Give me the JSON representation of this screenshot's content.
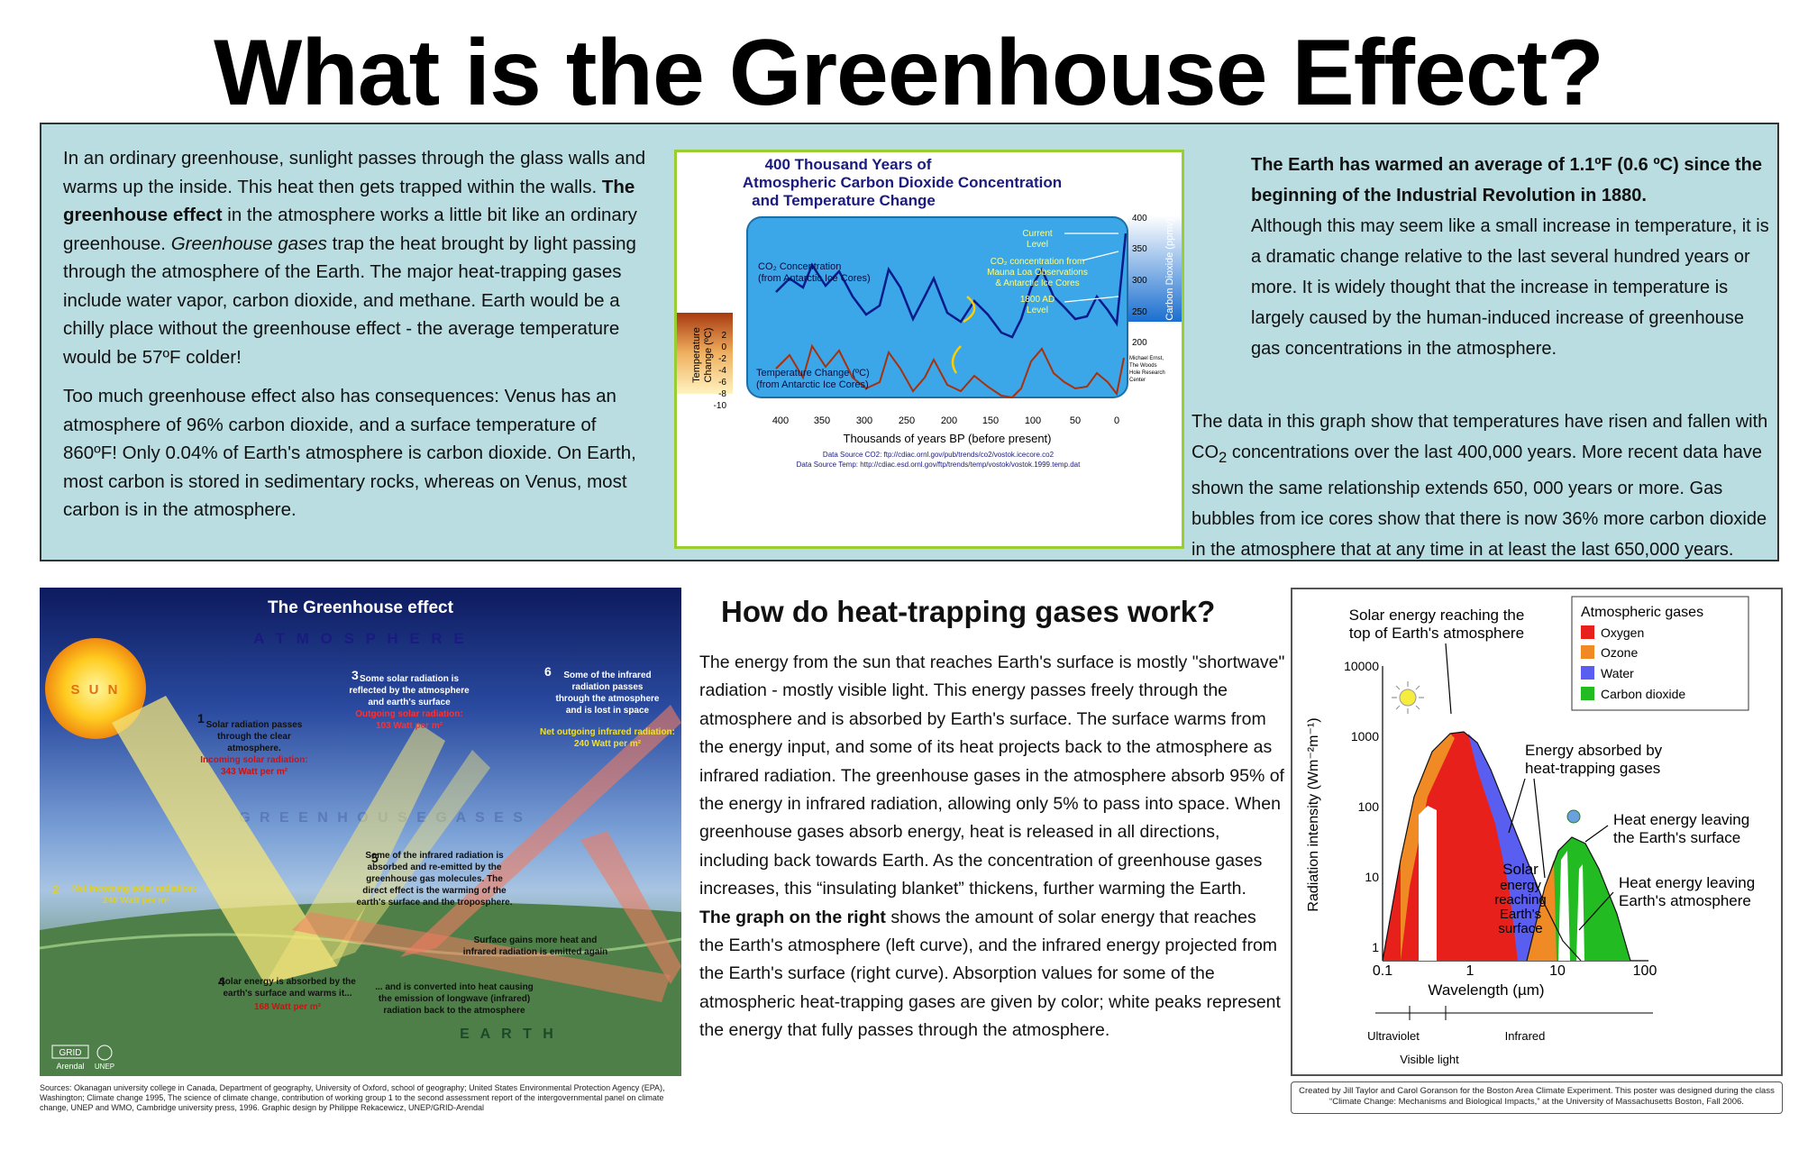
{
  "title": "What is the Greenhouse Effect?",
  "intro": {
    "p1_a": "In an ordinary greenhouse, sunlight passes through the glass walls and warms up the inside.  This heat then gets trapped within the walls. ",
    "p1_b": "The greenhouse effect",
    "p1_c": " in the atmosphere works a little bit like an ordinary greenhouse.  ",
    "p1_d": "Greenhouse gases",
    "p1_e": " trap the heat brought by light passing through the atmosphere of the Earth.  The major heat-trapping gases include water vapor, carbon dioxide, and methane.  Earth would be a chilly place without the greenhouse effect - the average temperature would be 57ºF colder!",
    "p2": "Too much greenhouse effect also has consequences:  Venus has an atmosphere of 96% carbon dioxide, and a surface temperature of 860ºF!  Only 0.04% of Earth's atmosphere is carbon dioxide.  On Earth, most carbon is stored in sedimentary rocks, whereas on Venus, most carbon is in the atmosphere."
  },
  "co2_chart": {
    "title_1": "400 Thousand Years of",
    "title_2": "Atmospheric Carbon Dioxide Concentration",
    "title_3": "and Temperature Change",
    "co2_label_1": "CO₂ Concentration",
    "co2_label_2": "(from Antarctic Ice Cores)",
    "current_1": "Current",
    "current_2": "Level",
    "mauna_1": "CO₂ concentration from",
    "mauna_2": "Mauna Loa Observations",
    "mauna_3": "& Antarctic Ice Cores",
    "ad_1": "1800 AD",
    "ad_2": "Level",
    "temp_label_1": "Temperature Change (ºC)",
    "temp_label_2": "(from Antarctic Ice Cores)",
    "left_axis_1": "Temperature",
    "left_axis_2": "Change (ºC)",
    "right_axis": "Carbon Dioxide (ppmv)",
    "xlabel": "Thousands of years BP (before present)",
    "credit_1": "Michael Ernst,",
    "credit_2": "The Woods",
    "credit_3": "Hole Research",
    "credit_4": "Center",
    "source_1": "Data Source CO2: ftp://cdiac.ornl.gov/pub/trends/co2/vostok.icecore.co2",
    "source_2": "Data Source Temp: http://cdiac.esd.ornl.gov/ftp/trends/temp/vostok/vostok.1999.temp.dat",
    "x_ticks": [
      "400",
      "350",
      "300",
      "250",
      "200",
      "150",
      "100",
      "50",
      "0"
    ],
    "co2_ticks": [
      "400",
      "350",
      "300",
      "250",
      "200"
    ],
    "temp_ticks": [
      "2",
      "0",
      "-2",
      "-4",
      "-6",
      "-8",
      "-10"
    ]
  },
  "warming": {
    "bold": "The Earth has warmed an average of 1.1ºF (0.6 ºC) since the beginning of the Industrial Revolution in 1880.",
    "text": "Although this may seem like a small increase in temperature, it is a dramatic change relative to the last several hundred years or more.  It is widely thought that the increase in temperature is largely caused by the human-induced increase of greenhouse gas concentrations in the atmosphere."
  },
  "data_note": {
    "a": "The data in this graph show that temperatures have risen and fallen with CO",
    "sub": "2",
    "b": " concentrations over the last 400,000 years.  More recent data have shown the same relationship extends 650, 000 years or more.  Gas bubbles from ice cores show that there is now 36% more carbon dioxide in the atmosphere that at any time in at least the last 650,000 years."
  },
  "gh_figure": {
    "title": "The Greenhouse effect",
    "atmosphere": "A T M O S P H E R E",
    "greenhouse_gases": "G R E E N H O U S E   G A S E S",
    "earth": "E A R T H",
    "sun": "S U N",
    "s1_num": "1",
    "s1_a": "Solar radiation passes",
    "s1_b": "through the clear",
    "s1_c": "atmosphere.",
    "s1_d": "Incoming solar radiation:",
    "s1_e": "343 Watt per m²",
    "s2_num": "2",
    "s2_a": "Net incoming solar radiation:",
    "s2_b": "240 Watt per m²",
    "s3_num": "3",
    "s3_a": "Some solar radiation is",
    "s3_b": "reflected by the atmosphere",
    "s3_c": "and earth's surface",
    "s3_d": "Outgoing solar radiation:",
    "s3_e": "103 Watt per m²",
    "s4_num": "4",
    "s4_a": "Solar energy is absorbed by the",
    "s4_b": "earth's surface and warms it...",
    "s4_c": "168 Watt per m²",
    "s4_d": "... and is converted into heat causing",
    "s4_e": "the emission of longwave (infrared)",
    "s4_f": "radiation back to the atmosphere",
    "s5_num": "5",
    "s5_a": "Some of the infrared radiation is",
    "s5_b": "absorbed and re-emitted by the",
    "s5_c": "greenhouse gas molecules. The",
    "s5_d": "direct effect is the warming of the",
    "s5_e": "earth's surface and the troposphere.",
    "s5_f": "Surface gains more heat and",
    "s5_g": "infrared radiation is emitted again",
    "s6_num": "6",
    "s6_a": "Some of the infrared",
    "s6_b": "radiation passes",
    "s6_c": "through the atmosphere",
    "s6_d": "and is lost in space",
    "s6_e": "Net outgoing infrared radiation:",
    "s6_f": "240 Watt per m²",
    "logo_a": "GRID",
    "logo_b": "Arendal",
    "logo_c": "UNEP",
    "sources": "Sources: Okanagan university college in Canada, Department of geography, University of Oxford, school of geography; United States Environmental Protection Agency (EPA), Washington; Climate change 1995, The science of climate change, contribution of working group 1 to the second assessment report of the intergovernmental panel on climate change, UNEP and WMO, Cambridge university press,  1996.  Graphic design by Philippe Rekacewicz, UNEP/GRID-Arendal"
  },
  "how": {
    "title": "How do heat-trapping gases work?",
    "p1": "The energy from the sun that reaches Earth's surface is mostly \"shortwave\" radiation - mostly visible light.  This energy passes freely through the atmosphere and is absorbed by Earth's surface.  The surface warms from the energy input, and some of its heat projects back to the atmosphere as infrared radiation.  The greenhouse gases in the atmosphere absorb 95% of the energy in infrared radiation, allowing only 5% to pass into space.  When greenhouse gases absorb energy, heat is released in all directions, including back towards Earth.  As the concentration of greenhouse gases increases, this “insulating blanket” thickens, further warming the Earth.",
    "bold": "The graph on the right",
    "p2": " shows the amount of solar energy that reaches the Earth's atmosphere (left curve), and the infrared energy projected from the Earth's surface (right curve). Absorption values for some of the atmospheric heat-trapping gases are given by color; white peaks represent the energy that fully passes through the atmosphere."
  },
  "spectrum": {
    "legend_title": "Atmospheric gases",
    "legend": [
      {
        "label": "Oxygen",
        "color": "#e8201c"
      },
      {
        "label": "Ozone",
        "color": "#f08a24"
      },
      {
        "label": "Water",
        "color": "#5a5ef0"
      },
      {
        "label": "Carbon dioxide",
        "color": "#22bb22"
      }
    ],
    "top_label_1": "Solar energy reaching the",
    "top_label_2": "top of Earth's atmosphere",
    "absorbed_1": "Energy absorbed by",
    "absorbed_2": "heat-trapping gases",
    "leaving_surface_1": "Heat energy leaving",
    "leaving_surface_2": "the Earth's surface",
    "leaving_atm_1": "Heat energy leaving",
    "leaving_atm_2": "Earth's atmosphere",
    "solar_1": "Solar",
    "solar_2": "energy",
    "solar_3": "reaching",
    "solar_4": "Earth's",
    "solar_5": "surface",
    "ylabel": "Radiation intensity (Wm⁻²m⁻¹)",
    "xlabel": "Wavelength (µm)",
    "y_ticks": [
      "10000",
      "1000",
      "100",
      "10",
      "1"
    ],
    "x_ticks": [
      "0.1",
      "1",
      "10",
      "100"
    ],
    "uv": "Ultraviolet",
    "visible": "Visible light",
    "ir": "Infrared"
  },
  "credit": "Created by Jill Taylor and Carol Goranson for the Boston Area Climate Experiment.  This poster was designed during the class “Climate Change: Mechanisms and Biological Impacts,” at the University of Massachusetts Boston, Fall 2006."
}
